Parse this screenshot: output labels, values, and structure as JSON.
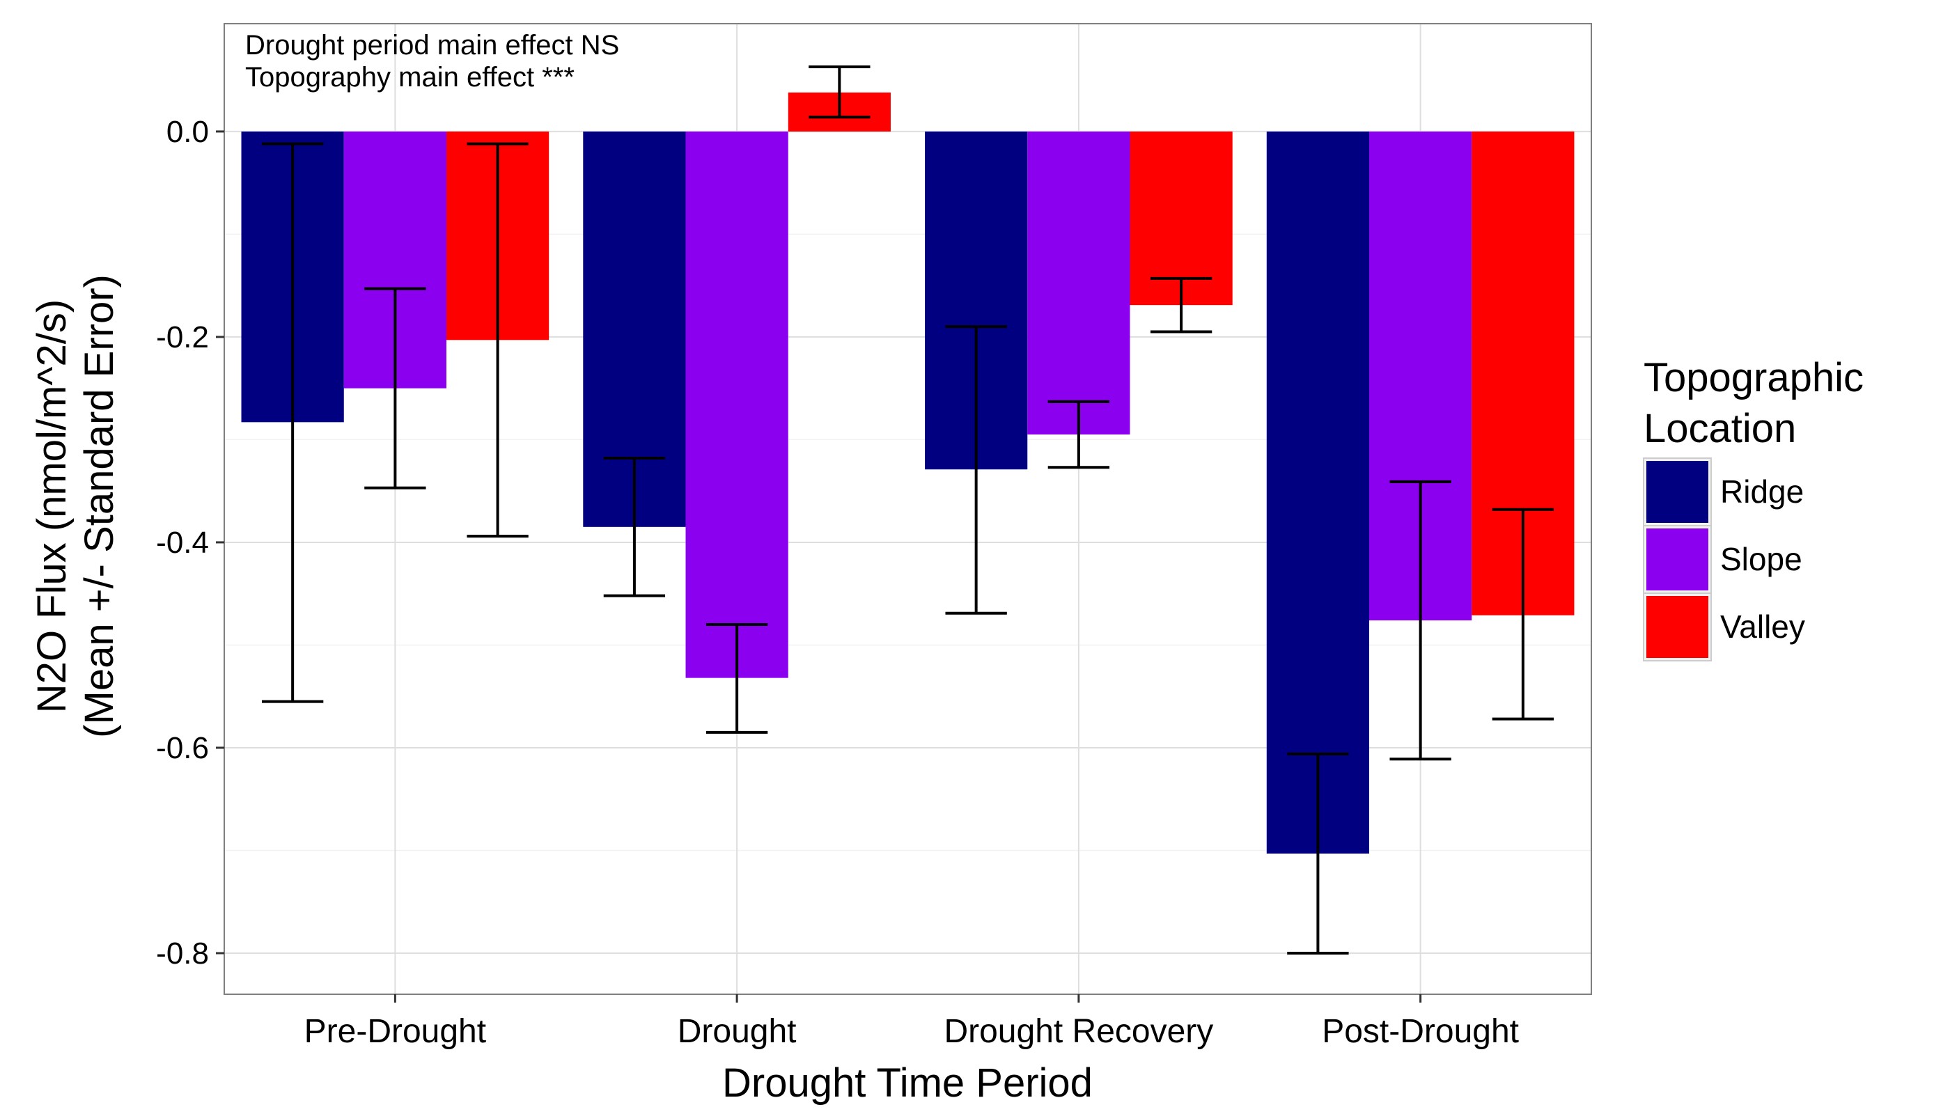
{
  "chart_data": {
    "type": "bar",
    "title": "",
    "xlabel": "Drought Time Period",
    "ylabel": [
      "N2O Flux (nmol/m^2/s)",
      "(Mean +/- Standard Error)"
    ],
    "categories": [
      "Pre-Drought",
      "Drought",
      "Drought Recovery",
      "Post-Drought"
    ],
    "ylim": [
      -0.84,
      0.105
    ],
    "yticks": [
      0.0,
      -0.2,
      -0.4,
      -0.6,
      -0.8
    ],
    "ytick_labels": [
      "0.0",
      "-0.2",
      "-0.4",
      "-0.6",
      "-0.8"
    ],
    "grid": true,
    "legend": {
      "title": [
        "Topographic",
        "Location"
      ],
      "placement": "right"
    },
    "annotations": [
      "Drought period main effect  NS",
      "Topography main effect  ***"
    ],
    "series": [
      {
        "name": "Ridge",
        "color": "#000080",
        "values": [
          -0.283,
          -0.385,
          -0.329,
          -0.703
        ],
        "error_low": [
          -0.555,
          -0.452,
          -0.469,
          -0.8
        ],
        "error_high": [
          -0.012,
          -0.318,
          -0.19,
          -0.606
        ]
      },
      {
        "name": "Slope",
        "color": "#8B00EE",
        "values": [
          -0.25,
          -0.532,
          -0.295,
          -0.476
        ],
        "error_low": [
          -0.347,
          -0.585,
          -0.327,
          -0.611
        ],
        "error_high": [
          -0.153,
          -0.48,
          -0.263,
          -0.341
        ]
      },
      {
        "name": "Valley",
        "color": "#FF0000",
        "values": [
          -0.203,
          0.038,
          -0.169,
          -0.471
        ],
        "error_low": [
          -0.394,
          0.014,
          -0.195,
          -0.572
        ],
        "error_high": [
          -0.012,
          0.063,
          -0.143,
          -0.368
        ]
      }
    ]
  }
}
